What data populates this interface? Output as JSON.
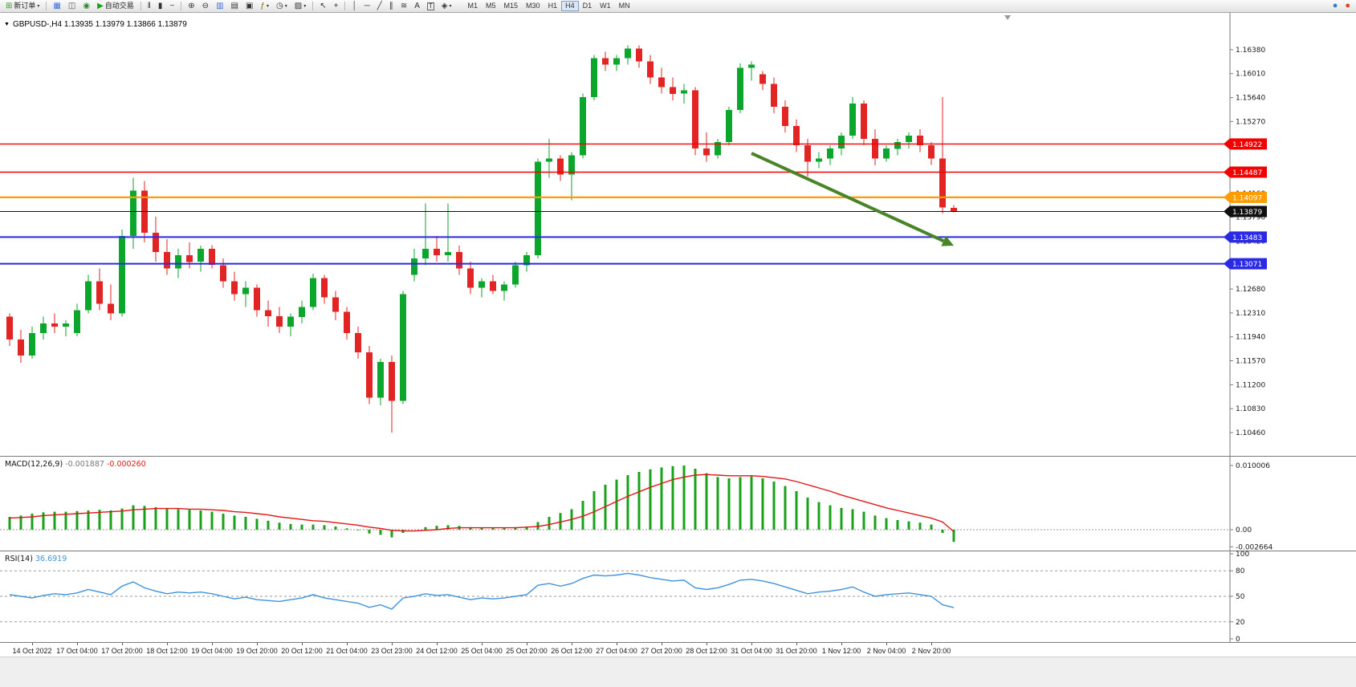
{
  "icons": {
    "caret": "▾",
    "collapse": "▼"
  },
  "toolbar": {
    "items": [
      {
        "t": "button",
        "name": "new-order",
        "glyph": "⊞",
        "gcolor": "#2f9e2f",
        "label": "新订单",
        "caret": true
      },
      {
        "t": "sep"
      },
      {
        "t": "icon",
        "name": "charts-window",
        "glyph": "▦",
        "gcolor": "#3a6fd8"
      },
      {
        "t": "icon",
        "name": "market-watch",
        "glyph": "◫",
        "gcolor": "#555555"
      },
      {
        "t": "icon",
        "name": "navigator",
        "glyph": "◉",
        "gcolor": "#2e8b2e"
      },
      {
        "t": "button",
        "name": "autotrading",
        "glyph": "▶",
        "gcolor": "#17a317",
        "label": "自动交易",
        "caret": false
      },
      {
        "t": "sep"
      },
      {
        "t": "icon",
        "name": "bar-chart",
        "glyph": "‖",
        "gcolor": "#333333"
      },
      {
        "t": "icon",
        "name": "candlestick-chart",
        "glyph": "▮",
        "gcolor": "#333333"
      },
      {
        "t": "icon",
        "name": "line-chart",
        "glyph": "~",
        "gcolor": "#333333"
      },
      {
        "t": "sep"
      },
      {
        "t": "icon",
        "name": "zoom-in",
        "glyph": "⊕",
        "gcolor": "#333333"
      },
      {
        "t": "icon",
        "name": "zoom-out",
        "glyph": "⊖",
        "gcolor": "#333333"
      },
      {
        "t": "icon",
        "name": "tile-windows",
        "glyph": "▥",
        "gcolor": "#3a6fd8"
      },
      {
        "t": "icon",
        "name": "cascade-windows",
        "glyph": "▤",
        "gcolor": "#333333"
      },
      {
        "t": "icon",
        "name": "arrange-windows",
        "glyph": "▣",
        "gcolor": "#333333"
      },
      {
        "t": "icon",
        "name": "indicators",
        "glyph": "ƒ",
        "gcolor": "#8a6d00",
        "caret": true
      },
      {
        "t": "icon",
        "name": "periods",
        "glyph": "◷",
        "gcolor": "#333333",
        "caret": true
      },
      {
        "t": "icon",
        "name": "templates",
        "glyph": "▨",
        "gcolor": "#333333",
        "caret": true
      },
      {
        "t": "sep"
      },
      {
        "t": "icon",
        "name": "cursor",
        "glyph": "↖",
        "gcolor": "#333333"
      },
      {
        "t": "icon",
        "name": "crosshair",
        "glyph": "+",
        "gcolor": "#333333"
      },
      {
        "t": "sep"
      },
      {
        "t": "icon",
        "name": "vertical-line-tool",
        "glyph": "│",
        "gcolor": "#333333"
      },
      {
        "t": "icon",
        "name": "horizontal-line-tool",
        "glyph": "─",
        "gcolor": "#333333"
      },
      {
        "t": "icon",
        "name": "trendline-tool",
        "glyph": "╱",
        "gcolor": "#333333"
      },
      {
        "t": "icon",
        "name": "channel-tool",
        "glyph": "∥",
        "gcolor": "#333333"
      },
      {
        "t": "icon",
        "name": "fibonacci-tool",
        "glyph": "≋",
        "gcolor": "#333333"
      },
      {
        "t": "icon",
        "name": "text-tool",
        "glyph": "A",
        "gcolor": "#333333"
      },
      {
        "t": "icon",
        "name": "textbox-tool",
        "glyph": "T",
        "gcolor": "#333333",
        "boxed": true
      },
      {
        "t": "icon",
        "name": "arrows-tool",
        "glyph": "◈",
        "gcolor": "#333333",
        "caret": true
      }
    ],
    "timeframes": [
      "M1",
      "M5",
      "M15",
      "M30",
      "H1",
      "H4",
      "D1",
      "W1",
      "MN"
    ],
    "active_timeframe": "H4",
    "right_icons": [
      {
        "name": "community",
        "glyph": "●",
        "color": "#2e7cd6"
      },
      {
        "name": "notification",
        "glyph": "●",
        "color": "#e8401c"
      }
    ]
  },
  "chart": {
    "title": "GBPUSD-,H4 1.13935 1.13979 1.13866 1.13879",
    "symbol": "GBPUSD-",
    "period": "H4"
  },
  "chart_data": {
    "type": "candlestick",
    "symbol": "GBPUSD-",
    "timeframe": "H4",
    "current_bar": {
      "open": 1.13935,
      "high": 1.13979,
      "low": 1.13866,
      "close": 1.13879
    },
    "colors": {
      "up": "#0ca62c",
      "down": "#e32424"
    },
    "price_axis": {
      "range": {
        "max": 1.1695,
        "min": 1.101
      },
      "grid_labels": [
        "1.16380",
        "1.16010",
        "1.15640",
        "1.15270",
        "1.14900",
        "1.14530",
        "1.14160",
        "1.13790",
        "1.13420",
        "1.13050",
        "1.12680",
        "1.12310",
        "1.11940",
        "1.11570",
        "1.11200",
        "1.10830",
        "1.10460"
      ]
    },
    "time_labels": [
      "14 Oct 2022",
      "17 Oct 04:00",
      "17 Oct 20:00",
      "18 Oct 12:00",
      "19 Oct 04:00",
      "19 Oct 20:00",
      "20 Oct 12:00",
      "21 Oct 04:00",
      "23 Oct 23:00",
      "24 Oct 12:00",
      "25 Oct 04:00",
      "25 Oct 20:00",
      "26 Oct 12:00",
      "27 Oct 04:00",
      "27 Oct 20:00",
      "28 Oct 12:00",
      "31 Oct 04:00",
      "31 Oct 20:00",
      "1 Nov 12:00",
      "2 Nov 04:00",
      "2 Nov 20:00"
    ],
    "levels": [
      {
        "name": "resistance-line-1",
        "price": 1.14922,
        "label": "1.14922",
        "color": "#f20000",
        "width": 1.4
      },
      {
        "name": "resistance-line-2",
        "price": 1.14487,
        "label": "1.14487",
        "color": "#f20000",
        "width": 1.4
      },
      {
        "name": "pivot-line",
        "price": 1.14097,
        "label": "1.14097",
        "color": "#ff9d00",
        "width": 2.2
      },
      {
        "name": "bid-price-line",
        "price": 1.13879,
        "label": "1.13879",
        "color": "#101010",
        "width": 1
      },
      {
        "name": "support-line-1",
        "price": 1.13483,
        "label": "1.13483",
        "color": "#2a2ae6",
        "width": 2
      },
      {
        "name": "support-line-2",
        "price": 1.13071,
        "label": "1.13071",
        "color": "#2a2ae6",
        "width": 2
      }
    ],
    "arrow": {
      "from_bar": 66,
      "from_price": 1.1478,
      "to_bar": 84,
      "to_price": 1.1335,
      "color": "#4a8428",
      "width": 4
    },
    "candles": [
      [
        1.1225,
        1.123,
        1.118,
        1.119
      ],
      [
        1.119,
        1.1205,
        1.1154,
        1.1165
      ],
      [
        1.1165,
        1.121,
        1.116,
        1.12
      ],
      [
        1.12,
        1.1225,
        1.119,
        1.1215
      ],
      [
        1.1215,
        1.123,
        1.12,
        1.121
      ],
      [
        1.121,
        1.122,
        1.1195,
        1.1215
      ],
      [
        1.12,
        1.1245,
        1.1195,
        1.1235
      ],
      [
        1.1235,
        1.129,
        1.123,
        1.128
      ],
      [
        1.128,
        1.13,
        1.1235,
        1.1245
      ],
      [
        1.1245,
        1.1275,
        1.122,
        1.123
      ],
      [
        1.123,
        1.136,
        1.1225,
        1.135
      ],
      [
        1.135,
        1.144,
        1.133,
        1.142
      ],
      [
        1.142,
        1.1435,
        1.134,
        1.1355
      ],
      [
        1.1355,
        1.138,
        1.131,
        1.1325
      ],
      [
        1.1325,
        1.1345,
        1.129,
        1.13
      ],
      [
        1.13,
        1.133,
        1.1285,
        1.132
      ],
      [
        1.132,
        1.134,
        1.13,
        1.131
      ],
      [
        1.131,
        1.1335,
        1.1295,
        1.133
      ],
      [
        1.133,
        1.1336,
        1.13,
        1.1305
      ],
      [
        1.1305,
        1.1315,
        1.127,
        1.128
      ],
      [
        1.128,
        1.1295,
        1.125,
        1.126
      ],
      [
        1.126,
        1.128,
        1.124,
        1.127
      ],
      [
        1.127,
        1.1275,
        1.1225,
        1.1235
      ],
      [
        1.1235,
        1.125,
        1.121,
        1.1226
      ],
      [
        1.1226,
        1.124,
        1.12,
        1.121
      ],
      [
        1.121,
        1.123,
        1.1195,
        1.1225
      ],
      [
        1.1225,
        1.125,
        1.1215,
        1.124
      ],
      [
        1.124,
        1.1292,
        1.1235,
        1.1285
      ],
      [
        1.1285,
        1.129,
        1.1245,
        1.1255
      ],
      [
        1.1255,
        1.1265,
        1.122,
        1.1233
      ],
      [
        1.1233,
        1.124,
        1.119,
        1.12
      ],
      [
        1.12,
        1.121,
        1.116,
        1.117
      ],
      [
        1.117,
        1.118,
        1.109,
        1.11
      ],
      [
        1.11,
        1.116,
        1.1088,
        1.1155
      ],
      [
        1.1155,
        1.1165,
        1.1046,
        1.1095
      ],
      [
        1.1095,
        1.1265,
        1.109,
        1.126
      ],
      [
        1.129,
        1.133,
        1.128,
        1.1315
      ],
      [
        1.1315,
        1.14,
        1.1305,
        1.133
      ],
      [
        1.133,
        1.135,
        1.131,
        1.132
      ],
      [
        1.132,
        1.14,
        1.131,
        1.1325
      ],
      [
        1.1325,
        1.1335,
        1.129,
        1.13
      ],
      [
        1.13,
        1.131,
        1.126,
        1.127
      ],
      [
        1.127,
        1.1285,
        1.1255,
        1.128
      ],
      [
        1.128,
        1.129,
        1.126,
        1.1265
      ],
      [
        1.1265,
        1.128,
        1.125,
        1.1275
      ],
      [
        1.1275,
        1.131,
        1.127,
        1.1305
      ],
      [
        1.1305,
        1.1325,
        1.1295,
        1.132
      ],
      [
        1.132,
        1.147,
        1.1315,
        1.1465
      ],
      [
        1.1465,
        1.15,
        1.144,
        1.147
      ],
      [
        1.147,
        1.1475,
        1.1435,
        1.1445
      ],
      [
        1.1445,
        1.148,
        1.1405,
        1.1475
      ],
      [
        1.1475,
        1.157,
        1.147,
        1.1565
      ],
      [
        1.1565,
        1.163,
        1.156,
        1.1625
      ],
      [
        1.1625,
        1.1635,
        1.1605,
        1.1615
      ],
      [
        1.1615,
        1.163,
        1.1605,
        1.1625
      ],
      [
        1.1625,
        1.1645,
        1.1615,
        1.164
      ],
      [
        1.164,
        1.1645,
        1.161,
        1.162
      ],
      [
        1.162,
        1.163,
        1.1585,
        1.1595
      ],
      [
        1.1595,
        1.161,
        1.157,
        1.158
      ],
      [
        1.158,
        1.1595,
        1.156,
        1.157
      ],
      [
        1.157,
        1.1585,
        1.1555,
        1.1575
      ],
      [
        1.1575,
        1.158,
        1.1475,
        1.1485
      ],
      [
        1.1485,
        1.151,
        1.1465,
        1.1475
      ],
      [
        1.1475,
        1.15,
        1.147,
        1.1495
      ],
      [
        1.1495,
        1.155,
        1.149,
        1.1545
      ],
      [
        1.1545,
        1.1617,
        1.154,
        1.161
      ],
      [
        1.161,
        1.162,
        1.159,
        1.1615
      ],
      [
        1.16,
        1.1605,
        1.1575,
        1.1585
      ],
      [
        1.1585,
        1.1595,
        1.154,
        1.155
      ],
      [
        1.155,
        1.156,
        1.151,
        1.152
      ],
      [
        1.152,
        1.153,
        1.148,
        1.149
      ],
      [
        1.149,
        1.15,
        1.1442,
        1.1465
      ],
      [
        1.1465,
        1.148,
        1.1455,
        1.147
      ],
      [
        1.147,
        1.149,
        1.146,
        1.1485
      ],
      [
        1.1485,
        1.151,
        1.1475,
        1.1505
      ],
      [
        1.1505,
        1.1565,
        1.15,
        1.1555
      ],
      [
        1.1555,
        1.156,
        1.149,
        1.15
      ],
      [
        1.15,
        1.1515,
        1.1459,
        1.147
      ],
      [
        1.147,
        1.149,
        1.1465,
        1.1485
      ],
      [
        1.1485,
        1.15,
        1.1475,
        1.1495
      ],
      [
        1.1495,
        1.151,
        1.1485,
        1.1505
      ],
      [
        1.1505,
        1.1515,
        1.148,
        1.149
      ],
      [
        1.149,
        1.1495,
        1.146,
        1.147
      ],
      [
        1.147,
        1.1565,
        1.1385,
        1.1394
      ],
      [
        1.13935,
        1.13979,
        1.13866,
        1.13879
      ]
    ],
    "macd": {
      "label": "MACD(12,26,9)",
      "main_value": "-0.001887",
      "signal_value": "-0.000260",
      "range": {
        "max": 0.010006,
        "min": -0.002664
      },
      "axis_labels": [
        "0.010006",
        "0.00",
        "-0.002664"
      ],
      "hist_color": "#19a119",
      "signal_color": "#e41616",
      "histogram": [
        0.002,
        0.0022,
        0.0025,
        0.0027,
        0.0028,
        0.0028,
        0.0029,
        0.003,
        0.0031,
        0.003,
        0.0033,
        0.0038,
        0.0037,
        0.0035,
        0.0033,
        0.0032,
        0.0031,
        0.003,
        0.0028,
        0.0025,
        0.0022,
        0.002,
        0.0017,
        0.0014,
        0.0011,
        0.0009,
        0.0008,
        0.0008,
        0.0007,
        0.0005,
        0.0002,
        -0.0001,
        -0.0006,
        -0.0008,
        -0.0012,
        -0.0005,
        0.0,
        0.0004,
        0.0006,
        0.0007,
        0.0006,
        0.0004,
        0.0003,
        0.0003,
        0.0003,
        0.0004,
        0.0005,
        0.0012,
        0.002,
        0.0026,
        0.0032,
        0.0045,
        0.006,
        0.007,
        0.0078,
        0.0085,
        0.009,
        0.0094,
        0.0097,
        0.0099,
        0.01,
        0.0095,
        0.0088,
        0.0082,
        0.008,
        0.0082,
        0.0083,
        0.008,
        0.0075,
        0.0068,
        0.006,
        0.005,
        0.0043,
        0.0038,
        0.0034,
        0.0032,
        0.0028,
        0.0022,
        0.0018,
        0.0015,
        0.0013,
        0.0011,
        0.0008,
        -0.0005,
        -0.0019
      ],
      "signal": [
        0.0018,
        0.0019,
        0.002,
        0.0022,
        0.0023,
        0.0024,
        0.0025,
        0.0026,
        0.0027,
        0.0028,
        0.0029,
        0.0031,
        0.0032,
        0.0033,
        0.0033,
        0.0033,
        0.0032,
        0.0032,
        0.0031,
        0.003,
        0.0028,
        0.0027,
        0.0025,
        0.0023,
        0.002,
        0.0018,
        0.0016,
        0.0014,
        0.0013,
        0.0011,
        0.0009,
        0.0007,
        0.0004,
        0.0002,
        -0.0001,
        -0.0002,
        -0.0002,
        -0.0001,
        0.0,
        0.0002,
        0.0003,
        0.0003,
        0.0003,
        0.0003,
        0.0003,
        0.0003,
        0.0004,
        0.0005,
        0.0008,
        0.0012,
        0.0016,
        0.0021,
        0.0028,
        0.0036,
        0.0044,
        0.0052,
        0.0059,
        0.0066,
        0.0072,
        0.0078,
        0.0082,
        0.0085,
        0.0086,
        0.0085,
        0.0084,
        0.0084,
        0.0084,
        0.0083,
        0.0081,
        0.0079,
        0.0075,
        0.007,
        0.0065,
        0.006,
        0.0054,
        0.0049,
        0.0044,
        0.0039,
        0.0034,
        0.003,
        0.0026,
        0.0022,
        0.0018,
        0.0012,
        -0.0003
      ]
    },
    "rsi": {
      "label": "RSI(14)",
      "value_text": "36.6919",
      "line_color": "#3f93dc",
      "levels": [
        80,
        50,
        20
      ],
      "axis_labels": [
        "100",
        "80",
        "50",
        "20",
        "0"
      ],
      "values": [
        52,
        50,
        48,
        51,
        53,
        52,
        54,
        58,
        55,
        52,
        62,
        67,
        60,
        56,
        53,
        55,
        54,
        55,
        53,
        50,
        47,
        49,
        46,
        45,
        44,
        46,
        48,
        52,
        48,
        46,
        44,
        42,
        37,
        40,
        35,
        48,
        50,
        53,
        51,
        52,
        49,
        46,
        48,
        47,
        48,
        50,
        52,
        63,
        65,
        62,
        65,
        71,
        75,
        74,
        75,
        77,
        75,
        72,
        70,
        68,
        69,
        60,
        58,
        60,
        64,
        69,
        70,
        68,
        65,
        61,
        57,
        53,
        55,
        56,
        58,
        61,
        55,
        50,
        52,
        53,
        54,
        52,
        50,
        40,
        36.7
      ]
    }
  }
}
